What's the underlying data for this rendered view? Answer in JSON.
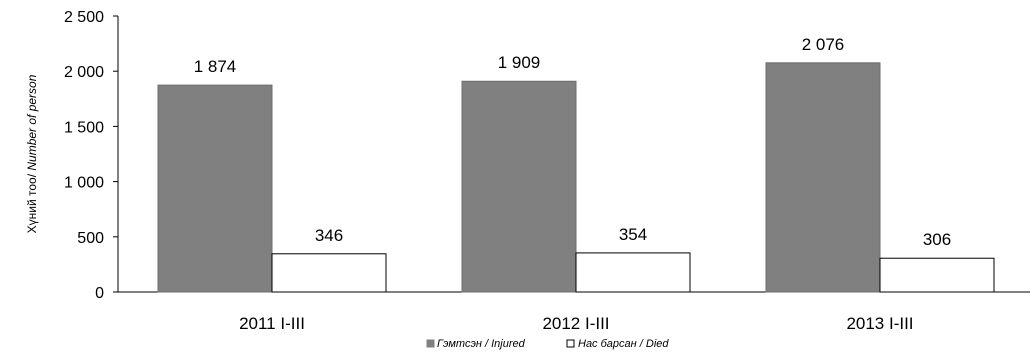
{
  "chart_data": {
    "type": "bar",
    "categories": [
      "2011 I-III",
      "2012 I-III",
      "2013 I-III"
    ],
    "series": [
      {
        "name": "Гэмтсэн / Injured",
        "values": [
          1874,
          1909,
          2076
        ],
        "labels": [
          "1 874",
          "1 909",
          "2 076"
        ],
        "color": "#808080"
      },
      {
        "name": "Нас барсан / Died",
        "values": [
          346,
          354,
          306
        ],
        "labels": [
          "346",
          "354",
          "306"
        ],
        "color": "#ffffff"
      }
    ],
    "ylabel_prefix": "Хүний тоо/ ",
    "ylabel_suffix": "Number of person",
    "ylim": [
      0,
      2500
    ],
    "yticks": [
      0,
      500,
      1000,
      1500,
      2000,
      2500
    ],
    "ytick_labels": [
      "0",
      "500",
      "1 000",
      "1 500",
      "2 000",
      "2 500"
    ],
    "grid": false,
    "legend_position": "bottom"
  }
}
